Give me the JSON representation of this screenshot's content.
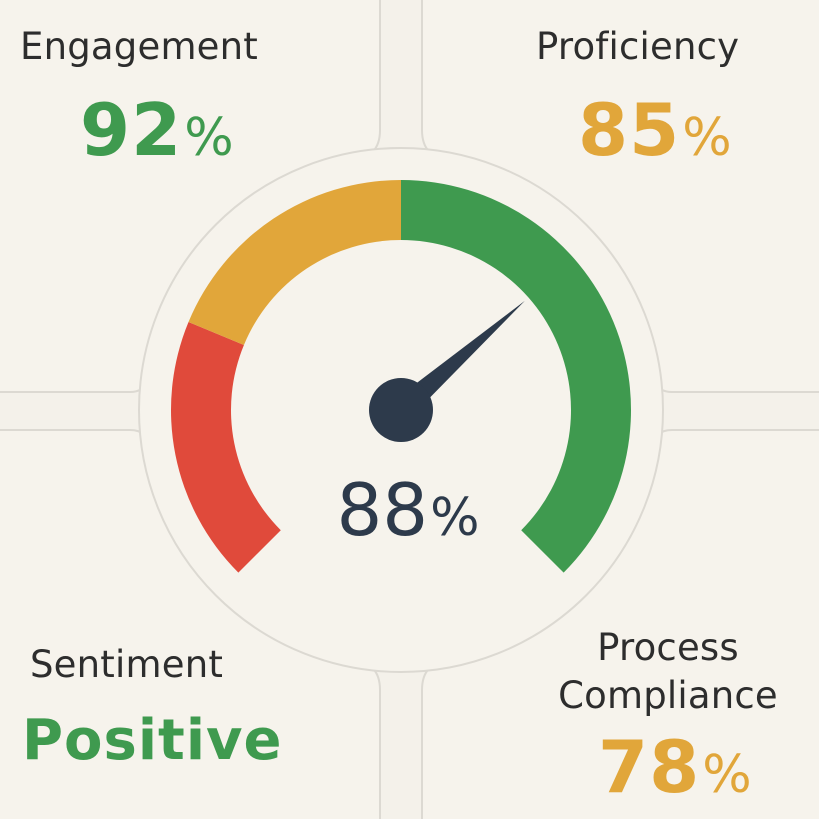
{
  "colors": {
    "green": "#3f9a4f",
    "amber": "#e1a63a",
    "red": "#e04a3b",
    "needle": "#2d3a4b",
    "background": "#f4f1ea",
    "panel_border": "#d9d6cf"
  },
  "metrics": {
    "engagement": {
      "label": "Engagement",
      "value": "92",
      "unit": "%",
      "color": "green"
    },
    "proficiency": {
      "label": "Proficiency",
      "value": "85",
      "unit": "%",
      "color": "amber"
    },
    "sentiment": {
      "label": "Sentiment",
      "value": "Positive",
      "color": "green"
    },
    "process_compliance": {
      "label_line1": "Process",
      "label_line2": "Compliance",
      "value": "78",
      "unit": "%",
      "color": "amber"
    }
  },
  "gauge": {
    "value": "88",
    "unit": "%",
    "level": 0.88,
    "bands": [
      {
        "name": "red",
        "from": 0.0,
        "to": 0.25
      },
      {
        "name": "amber",
        "from": 0.25,
        "to": 0.5
      },
      {
        "name": "green",
        "from": 0.5,
        "to": 1.0
      }
    ],
    "icon": "gauge-needle-icon"
  }
}
